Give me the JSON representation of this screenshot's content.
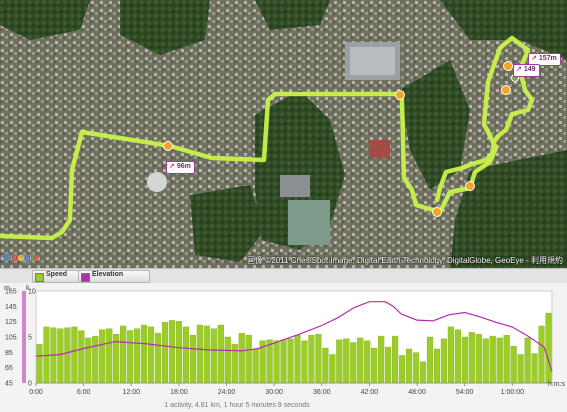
{
  "map": {
    "markers": [
      {
        "icon": "ascent-icon",
        "text": "96m"
      },
      {
        "icon": "ascent-icon",
        "text": "157m"
      },
      {
        "icon": "ascent-icon",
        "text": "149"
      }
    ],
    "copyright": "画像 ©2011 Cnes/Spot Image, Digital Earth Technology, DigitalGlobe, GeoEye - 利用規約",
    "logo": "Google",
    "logo_colors": [
      "#3b6fd6",
      "#d03a2b",
      "#e7b51b",
      "#3b6fd6",
      "#2a9a3f",
      "#d03a2b"
    ],
    "route_color": "#c9f24a"
  },
  "legend": {
    "speed_label": "Speed",
    "speed_color": "#9ccc2a",
    "elevation_label": "Elevation",
    "elevation_color": "#b22cb0"
  },
  "chart_data": {
    "type": "bar",
    "left_axis": {
      "label": "m",
      "ticks": [
        "165",
        "145",
        "125",
        "105",
        "85",
        "65",
        "45"
      ],
      "range": [
        45,
        165
      ]
    },
    "speed_axis": {
      "label": "k.",
      "ticks": [
        "10",
        "5",
        "0"
      ],
      "range": [
        0,
        10
      ]
    },
    "x_ticks": [
      "0:00",
      "6:00",
      "12:00",
      "18:00",
      "24:00",
      "30:00",
      "36:00",
      "42:00",
      "48:00",
      "54:00",
      "1:00:00"
    ],
    "x_unit": "h:m:s",
    "x_range_min": [
      0,
      65
    ],
    "speed": [
      4.2,
      6.1,
      6.0,
      5.9,
      6.0,
      6.1,
      5.7,
      4.9,
      5.1,
      5.8,
      5.9,
      5.3,
      6.2,
      5.7,
      5.9,
      6.3,
      6.1,
      5.4,
      6.6,
      6.8,
      6.7,
      6.1,
      5.2,
      6.3,
      6.2,
      5.9,
      6.3,
      5.0,
      4.2,
      5.4,
      5.2,
      3.7,
      4.6,
      4.7,
      4.6,
      4.7,
      4.8,
      5.2,
      4.6,
      5.2,
      5.3,
      3.8,
      3.1,
      4.7,
      4.8,
      4.4,
      4.9,
      4.6,
      3.8,
      5.1,
      3.9,
      5.1,
      3.0,
      3.7,
      3.3,
      2.3,
      5.0,
      3.7,
      4.8,
      6.1,
      5.8,
      5.0,
      5.5,
      5.3,
      4.8,
      5.1,
      4.9,
      5.2,
      4.0,
      3.1,
      4.9,
      3.2,
      6.2,
      7.6
    ],
    "elevation": {
      "t": [
        0,
        3,
        6,
        10,
        14,
        18,
        22,
        26,
        28,
        30,
        33,
        36,
        38,
        40,
        42,
        44,
        45,
        46,
        48,
        50,
        52,
        54,
        56,
        58,
        60,
        62,
        64,
        65
      ],
      "m": [
        80,
        82,
        90,
        99,
        96,
        91,
        88,
        87,
        90,
        97,
        108,
        120,
        130,
        143,
        151,
        151,
        145,
        135,
        127,
        126,
        134,
        137,
        131,
        124,
        118,
        106,
        92,
        60
      ]
    },
    "summary": "1 activity, 4.81 km, 1 hour 5 minutes 9 seconds"
  }
}
